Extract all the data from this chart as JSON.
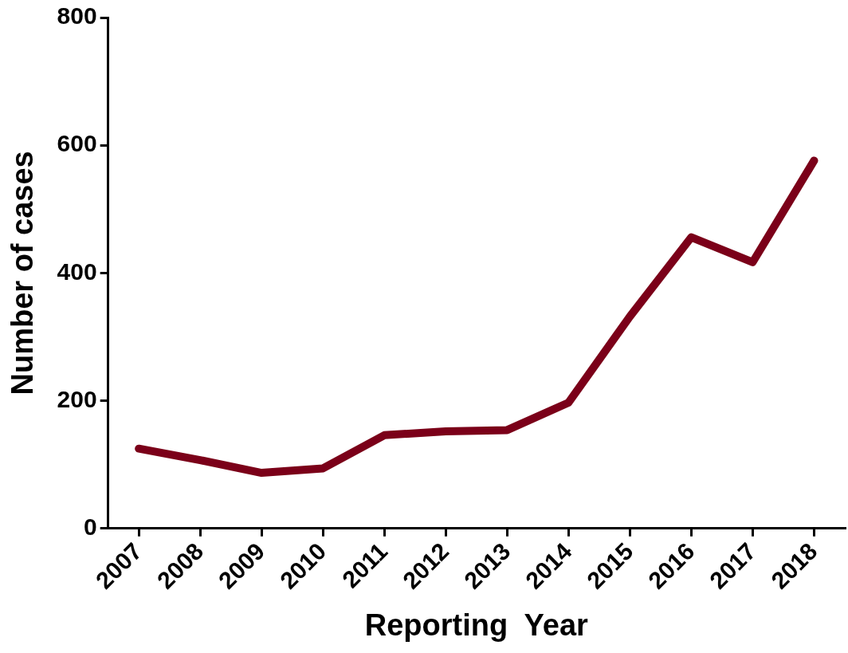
{
  "chart_data": {
    "type": "line",
    "xlabel": "Reporting  Year",
    "ylabel": "Number of cases",
    "categories": [
      "2007",
      "2008",
      "2009",
      "2010",
      "2011",
      "2012",
      "2013",
      "2014",
      "2015",
      "2016",
      "2017",
      "2018"
    ],
    "series": [
      {
        "color": "#7b0019",
        "values": [
          125,
          107,
          87,
          94,
          146,
          152,
          154,
          197,
          332,
          456,
          417,
          576
        ]
      }
    ],
    "ylim": [
      0,
      800
    ],
    "yticks": [
      0,
      200,
      400,
      600,
      800
    ],
    "grid": false,
    "legend": false,
    "marker": "none",
    "line_style": "solid"
  }
}
